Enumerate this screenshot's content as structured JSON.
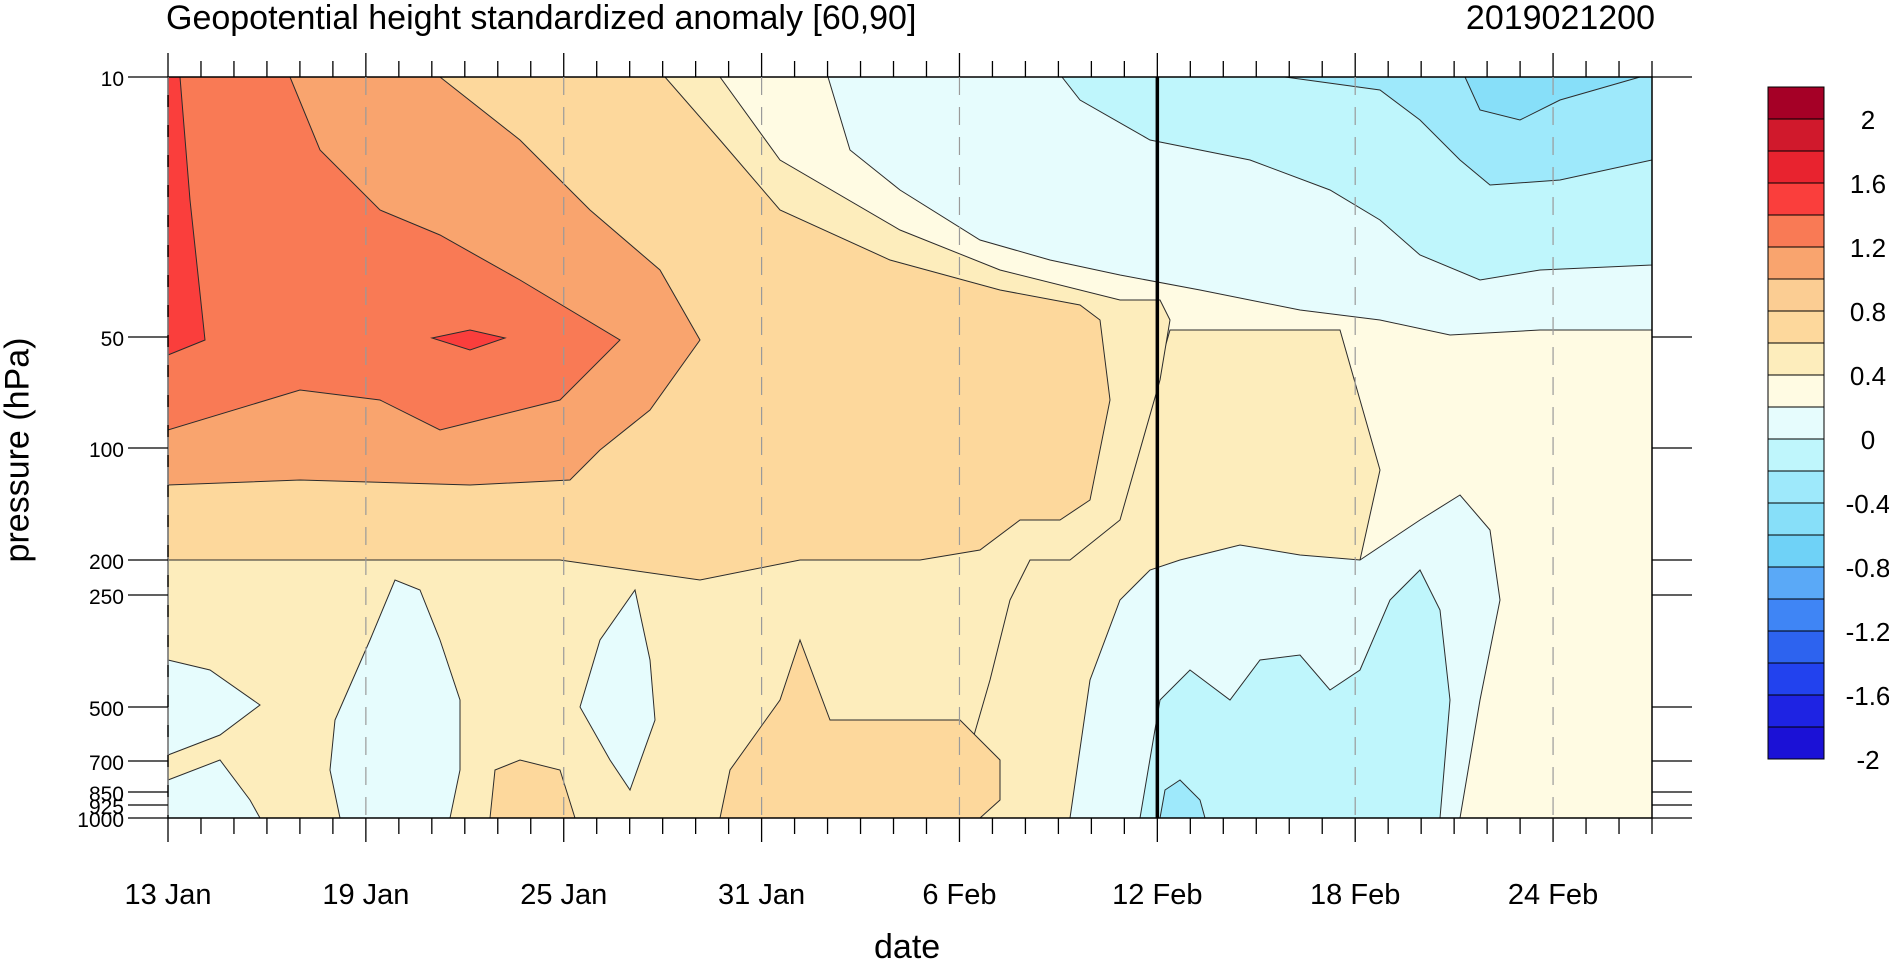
{
  "chart_data": {
    "type": "heatmap",
    "title": "Geopotential height standardized anomaly [60,90]",
    "subtitle": "2019021200",
    "xlabel": "date",
    "ylabel": "pressure (hPa)",
    "x_ticks": [
      "13 Jan",
      "19 Jan",
      "25 Jan",
      "31 Jan",
      "6 Feb",
      "12 Feb",
      "18 Feb",
      "24 Feb"
    ],
    "x_range": [
      "13 Jan",
      "27 Feb"
    ],
    "y_ticks": [
      "10",
      "50",
      "100",
      "200",
      "250",
      "500",
      "700",
      "850",
      "925",
      "1000"
    ],
    "y_scale": "log",
    "y_range": [
      1000,
      10
    ],
    "current_date_marker": "12 Feb",
    "colorbar": {
      "labels": [
        "2",
        "1.6",
        "1.2",
        "0.8",
        "0.4",
        "0",
        "-0.4",
        "-0.8",
        "-1.2",
        "-1.6",
        "-2"
      ],
      "colors": [
        "#a50026",
        "#d0192c",
        "#e8232f",
        "#fa3e3c",
        "#f97a55",
        "#f9a46e",
        "#fbcd93",
        "#fdd89c",
        "#fdedbc",
        "#fffbe3",
        "#e6fcfd",
        "#bff6fc",
        "#9ee9fb",
        "#87dff9",
        "#6fd2f7",
        "#5aa9f7",
        "#3f85f5",
        "#2d63ef",
        "#2242ee",
        "#1e23e3",
        "#1b11d6"
      ]
    },
    "regions_description": [
      {
        "period": "13 Jan - 25 Jan",
        "levels": "10-100 hPa",
        "anomaly": "1.2 to 1.6"
      },
      {
        "period": "31 Jan - 12 Feb",
        "levels": "50-200 hPa",
        "anomaly": "0.4 to 0.8"
      },
      {
        "period": "12 Feb - 27 Feb",
        "levels": "10-50 hPa",
        "anomaly": "0 to -0.8"
      },
      {
        "period": "12 Feb - 22 Feb",
        "levels": "200-1000 hPa",
        "anomaly": "0 to -0.4"
      }
    ]
  }
}
